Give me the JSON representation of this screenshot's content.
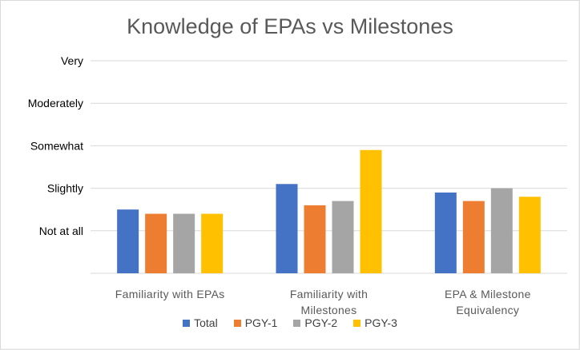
{
  "chart_data": {
    "type": "bar",
    "title": "Knowledge of EPAs vs Milestones",
    "categories": [
      [
        "Familiarity with EPAs"
      ],
      [
        "Familiarity with",
        "Milestones"
      ],
      [
        "EPA & Milestone",
        "Equivalency"
      ]
    ],
    "y_tick_labels": [
      "Not at all",
      "Slightly",
      "Somewhat",
      "Moderately",
      "Very"
    ],
    "y_tick_values": [
      1,
      2,
      3,
      4,
      5
    ],
    "ylim": [
      0,
      5
    ],
    "grid": true,
    "legend_position": "bottom",
    "series": [
      {
        "name": "Total",
        "color": "#4472C4",
        "values": [
          1.5,
          2.1,
          1.9
        ]
      },
      {
        "name": "PGY-1",
        "color": "#ED7D31",
        "values": [
          1.4,
          1.6,
          1.7
        ]
      },
      {
        "name": "PGY-2",
        "color": "#A5A5A5",
        "values": [
          1.4,
          1.7,
          2.0
        ]
      },
      {
        "name": "PGY-3",
        "color": "#FFC000",
        "values": [
          1.4,
          2.9,
          1.8
        ]
      }
    ]
  }
}
